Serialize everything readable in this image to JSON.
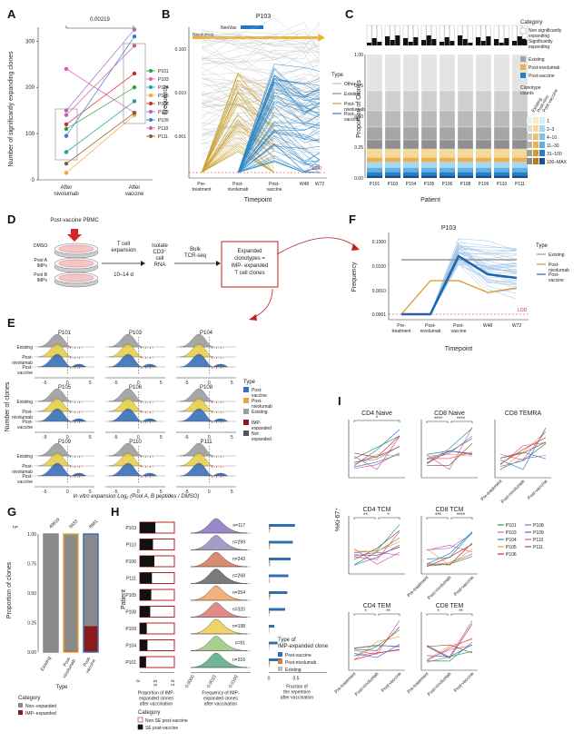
{
  "panels": {
    "A": {
      "label": "A",
      "ylabel": "Number of significantly expanding clones",
      "pvalue": "0.00219",
      "xticks": [
        "After nivolumab",
        "After vaccine"
      ],
      "yticks": [
        "0",
        "100",
        "200",
        "300"
      ],
      "legend": [
        "P101",
        "P103",
        "P104",
        "P105",
        "P106",
        "P108",
        "P109",
        "P110",
        "P111"
      ],
      "colors": [
        "#2e9e3e",
        "#e05ab3",
        "#1a9ea0",
        "#f4a23a",
        "#d62728",
        "#9b6fcf",
        "#2f7fd6",
        "#d95b9c",
        "#8c5a2b"
      ]
    },
    "B": {
      "label": "B",
      "title": "P103",
      "ylabel": "Frequency",
      "xlabel": "Timepoint",
      "yticks": [
        "0.001",
        "0.010",
        "0.100"
      ],
      "xticks": [
        "Pre-\ntreatment",
        "Post-\nnivolumab",
        "Post-\nvaccine",
        "W48",
        "W72"
      ],
      "neovax_label": "NeoVax",
      "nivolumab_label": "Nivolumab",
      "lod": "LOD",
      "legend_title": "Type",
      "legend": [
        "Other",
        "Existing",
        "Post-\nnivolumab",
        "Post-\nvaccine"
      ]
    },
    "C": {
      "label": "C",
      "ylabel": "Proportion of Clones",
      "xlabel": "Patient",
      "patients": [
        "P101",
        "P103",
        "P104",
        "P105",
        "P106",
        "P108",
        "P109",
        "P110",
        "P111"
      ],
      "yticks": [
        "0.00",
        "0.25",
        "0.50",
        "0.75",
        "1.00"
      ],
      "category_title": "Category",
      "categories": [
        "Non significantly\nexpanding",
        "Significantly\nexpanding"
      ],
      "type_items": [
        "Existing",
        "Post-nivolumab",
        "Post-vaccine"
      ],
      "counts_title": "Clonotype\ncounts",
      "counts_cols": [
        "Existing",
        "Post-nivo",
        "Post-vaccine"
      ],
      "counts": [
        "1",
        "2–3",
        "4–10",
        "11–30",
        "31–100",
        "100–MAX"
      ]
    },
    "D": {
      "label": "D",
      "pbmc": "Post-vaccine\nPBMC",
      "wells": [
        "DMSO",
        "Pool A\nIMPs",
        "Pool B\nIMPs"
      ],
      "step1": "T cell\nexpansion",
      "step1b": "10–14 d",
      "step2": "Isolate\nCD3⁺\ncell\nRNA",
      "step3": "Bulk\nTCR-seq",
      "result": "Expanded\nclonotypes =\nIMP- expanded\nT cell clones"
    },
    "E": {
      "label": "E",
      "ylabel": "Number of clones",
      "xlabel": "In vitro expansion Log₂ (Pool A, B peptides / DMSO)",
      "panels": [
        "P101",
        "P103",
        "P104",
        "P105",
        "P106",
        "P108",
        "P109",
        "P110",
        "P111"
      ],
      "rows": [
        "Existing",
        "Post-\nnivolumab",
        "Post-\nvaccine"
      ],
      "xticks": [
        "-5",
        "0",
        "5"
      ],
      "legend_title": "Type",
      "legend": [
        "Post-\nvaccine",
        "Post-\nnivolumab",
        "Existing",
        "IMP-\nexpanded",
        "Not\nexpanded"
      ]
    },
    "F": {
      "label": "F",
      "title": "P103",
      "ylabel": "Frequency",
      "xlabel": "Timepoint",
      "yticks": [
        "0.0001",
        "0.0010",
        "0.0100",
        "0.1000"
      ],
      "xticks": [
        "Pre-\ntreatment",
        "Post-\nnivolumab",
        "Post-\nvaccine",
        "W48",
        "W72"
      ],
      "lod": "LOD",
      "legend_title": "Type",
      "legend": [
        "Existing",
        "Post-\nnivolumab",
        "Post-\nvaccine"
      ]
    },
    "G": {
      "label": "G",
      "ylabel": "Proportion of clones",
      "xlabel": "Type",
      "n_label": "n=",
      "ns": [
        "49619",
        "5633",
        "8681"
      ],
      "xticks": [
        "Existing",
        "Post-\nnivolumab",
        "Post-\nvaccine"
      ],
      "yticks": [
        "0.00",
        "0.25",
        "0.50",
        "0.75",
        "1.00"
      ],
      "legend_title": "Category",
      "legend": [
        "Non−expanded",
        "IMP−expanded"
      ]
    },
    "H": {
      "label": "H",
      "ylabel": "Patient",
      "patients": [
        "P103",
        "P110",
        "P106",
        "P111",
        "P105",
        "P108",
        "P109",
        "P104",
        "P101"
      ],
      "ns": [
        "n=117",
        "n=299",
        "n=243",
        "n=268",
        "n=254",
        "n=320",
        "n=198",
        "n=91",
        "n=316"
      ],
      "x1label": "Proportion of IMP-\nexpanded clones\nafter vaccination",
      "x1ticks": [
        "0",
        "0.5",
        "1.0"
      ],
      "x2label": "Frequency of IMP-\nexpanded clones\nafter vaccination",
      "x2ticks": [
        "0.0000",
        "0.0010",
        "0.0100"
      ],
      "x3label": "Fraction of\nthe repertoire\nafter vaccination",
      "x3ticks": [
        "0",
        "0.5"
      ],
      "legend_title": "Type of\nIMP-expanded clone",
      "legend": [
        "Post-vaccine",
        "Post-nivolumab",
        "Existing"
      ],
      "cat_title": "Category",
      "cat_legend": [
        "Non SE post-vaccine",
        "SE post-vaccine"
      ]
    },
    "I": {
      "label": "I",
      "ylabel": "%Ki-67⁺",
      "subtitles": [
        "CD4 Naive",
        "CD8 Naive",
        "CD8 TEMRA",
        "CD4 TCM",
        "CD8 TCM",
        "CD4 TEM",
        "CD8 TEM"
      ],
      "xticks": [
        "Pre-treatment",
        "Post-nivolumab",
        "Post-vaccine"
      ],
      "legend": [
        "P101",
        "P103",
        "P104",
        "P105",
        "P106",
        "P108",
        "P109",
        "P110",
        "P111"
      ]
    }
  },
  "chart_data": [
    {
      "panel": "A",
      "type": "scatter",
      "title": "",
      "ylabel": "Number of significantly expanding clones",
      "categories": [
        "After nivolumab",
        "After vaccine"
      ],
      "series": [
        {
          "name": "P101",
          "values": [
            110,
            200
          ]
        },
        {
          "name": "P103",
          "values": [
            240,
            145
          ]
        },
        {
          "name": "P104",
          "values": [
            60,
            170
          ]
        },
        {
          "name": "P105",
          "values": [
            15,
            140
          ]
        },
        {
          "name": "P106",
          "values": [
            120,
            230
          ]
        },
        {
          "name": "P108",
          "values": [
            150,
            325
          ]
        },
        {
          "name": "P109",
          "values": [
            95,
            310
          ]
        },
        {
          "name": "P110",
          "values": [
            140,
            290
          ]
        },
        {
          "name": "P111",
          "values": [
            35,
            145
          ]
        }
      ],
      "ylim": [
        0,
        330
      ]
    },
    {
      "panel": "G",
      "type": "bar",
      "categories": [
        "Existing",
        "Post-nivolumab",
        "Post-vaccine"
      ],
      "series": [
        {
          "name": "Non−expanded",
          "values": [
            0.995,
            0.99,
            0.78
          ]
        },
        {
          "name": "IMP−expanded",
          "values": [
            0.005,
            0.01,
            0.22
          ]
        }
      ],
      "ylim": [
        0,
        1
      ]
    },
    {
      "panel": "H-fraction",
      "type": "bar",
      "categories": [
        "P103",
        "P110",
        "P106",
        "P111",
        "P105",
        "P108",
        "P109",
        "P104",
        "P101"
      ],
      "series": [
        {
          "name": "Post-vaccine",
          "values": [
            0.48,
            0.44,
            0.4,
            0.36,
            0.34,
            0.3,
            0.1,
            0.16,
            0.24
          ]
        },
        {
          "name": "Post-nivolumab",
          "values": [
            0.03,
            0.02,
            0.02,
            0.01,
            0.03,
            0.02,
            0.01,
            0.01,
            0.02
          ]
        },
        {
          "name": "Existing",
          "values": [
            0.02,
            0.02,
            0.03,
            0.02,
            0.02,
            0.01,
            0.01,
            0.01,
            0.02
          ]
        }
      ]
    }
  ]
}
